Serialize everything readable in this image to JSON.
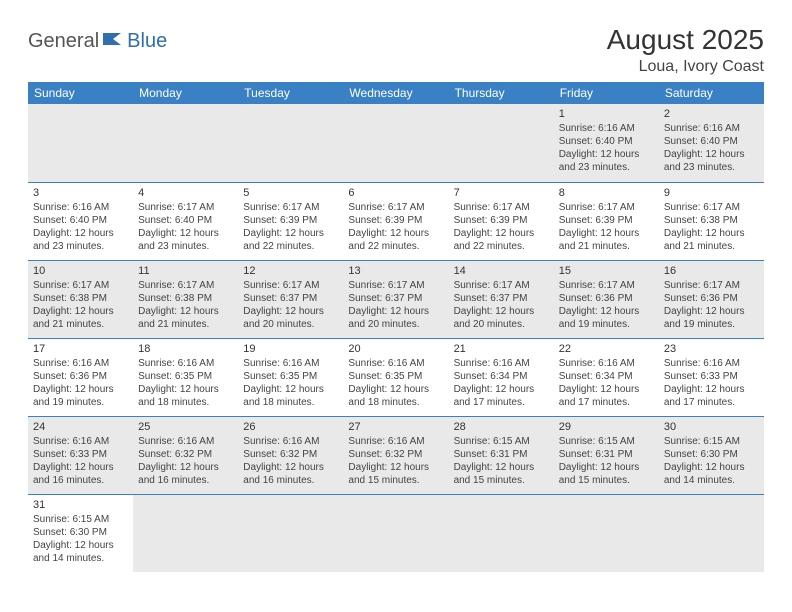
{
  "logo": {
    "part1": "General",
    "part2": "Blue"
  },
  "title": "August 2025",
  "subtitle": "Loua, Ivory Coast",
  "colors": {
    "header_bg": "#3a80c4",
    "header_text": "#ffffff",
    "row_alt_bg": "#e9e9e9",
    "row_bg": "#ffffff",
    "border": "#3a80c4",
    "logo_accent": "#2f6fad",
    "text": "#444444"
  },
  "weekdays": [
    "Sunday",
    "Monday",
    "Tuesday",
    "Wednesday",
    "Thursday",
    "Friday",
    "Saturday"
  ],
  "weeks": [
    [
      null,
      null,
      null,
      null,
      null,
      {
        "n": "1",
        "sr": "6:16 AM",
        "ss": "6:40 PM",
        "dl": "12 hours and 23 minutes."
      },
      {
        "n": "2",
        "sr": "6:16 AM",
        "ss": "6:40 PM",
        "dl": "12 hours and 23 minutes."
      }
    ],
    [
      {
        "n": "3",
        "sr": "6:16 AM",
        "ss": "6:40 PM",
        "dl": "12 hours and 23 minutes."
      },
      {
        "n": "4",
        "sr": "6:17 AM",
        "ss": "6:40 PM",
        "dl": "12 hours and 23 minutes."
      },
      {
        "n": "5",
        "sr": "6:17 AM",
        "ss": "6:39 PM",
        "dl": "12 hours and 22 minutes."
      },
      {
        "n": "6",
        "sr": "6:17 AM",
        "ss": "6:39 PM",
        "dl": "12 hours and 22 minutes."
      },
      {
        "n": "7",
        "sr": "6:17 AM",
        "ss": "6:39 PM",
        "dl": "12 hours and 22 minutes."
      },
      {
        "n": "8",
        "sr": "6:17 AM",
        "ss": "6:39 PM",
        "dl": "12 hours and 21 minutes."
      },
      {
        "n": "9",
        "sr": "6:17 AM",
        "ss": "6:38 PM",
        "dl": "12 hours and 21 minutes."
      }
    ],
    [
      {
        "n": "10",
        "sr": "6:17 AM",
        "ss": "6:38 PM",
        "dl": "12 hours and 21 minutes."
      },
      {
        "n": "11",
        "sr": "6:17 AM",
        "ss": "6:38 PM",
        "dl": "12 hours and 21 minutes."
      },
      {
        "n": "12",
        "sr": "6:17 AM",
        "ss": "6:37 PM",
        "dl": "12 hours and 20 minutes."
      },
      {
        "n": "13",
        "sr": "6:17 AM",
        "ss": "6:37 PM",
        "dl": "12 hours and 20 minutes."
      },
      {
        "n": "14",
        "sr": "6:17 AM",
        "ss": "6:37 PM",
        "dl": "12 hours and 20 minutes."
      },
      {
        "n": "15",
        "sr": "6:17 AM",
        "ss": "6:36 PM",
        "dl": "12 hours and 19 minutes."
      },
      {
        "n": "16",
        "sr": "6:17 AM",
        "ss": "6:36 PM",
        "dl": "12 hours and 19 minutes."
      }
    ],
    [
      {
        "n": "17",
        "sr": "6:16 AM",
        "ss": "6:36 PM",
        "dl": "12 hours and 19 minutes."
      },
      {
        "n": "18",
        "sr": "6:16 AM",
        "ss": "6:35 PM",
        "dl": "12 hours and 18 minutes."
      },
      {
        "n": "19",
        "sr": "6:16 AM",
        "ss": "6:35 PM",
        "dl": "12 hours and 18 minutes."
      },
      {
        "n": "20",
        "sr": "6:16 AM",
        "ss": "6:35 PM",
        "dl": "12 hours and 18 minutes."
      },
      {
        "n": "21",
        "sr": "6:16 AM",
        "ss": "6:34 PM",
        "dl": "12 hours and 17 minutes."
      },
      {
        "n": "22",
        "sr": "6:16 AM",
        "ss": "6:34 PM",
        "dl": "12 hours and 17 minutes."
      },
      {
        "n": "23",
        "sr": "6:16 AM",
        "ss": "6:33 PM",
        "dl": "12 hours and 17 minutes."
      }
    ],
    [
      {
        "n": "24",
        "sr": "6:16 AM",
        "ss": "6:33 PM",
        "dl": "12 hours and 16 minutes."
      },
      {
        "n": "25",
        "sr": "6:16 AM",
        "ss": "6:32 PM",
        "dl": "12 hours and 16 minutes."
      },
      {
        "n": "26",
        "sr": "6:16 AM",
        "ss": "6:32 PM",
        "dl": "12 hours and 16 minutes."
      },
      {
        "n": "27",
        "sr": "6:16 AM",
        "ss": "6:32 PM",
        "dl": "12 hours and 15 minutes."
      },
      {
        "n": "28",
        "sr": "6:15 AM",
        "ss": "6:31 PM",
        "dl": "12 hours and 15 minutes."
      },
      {
        "n": "29",
        "sr": "6:15 AM",
        "ss": "6:31 PM",
        "dl": "12 hours and 15 minutes."
      },
      {
        "n": "30",
        "sr": "6:15 AM",
        "ss": "6:30 PM",
        "dl": "12 hours and 14 minutes."
      }
    ],
    [
      {
        "n": "31",
        "sr": "6:15 AM",
        "ss": "6:30 PM",
        "dl": "12 hours and 14 minutes."
      },
      null,
      null,
      null,
      null,
      null,
      null
    ]
  ],
  "labels": {
    "sunrise": "Sunrise: ",
    "sunset": "Sunset: ",
    "daylight": "Daylight: "
  }
}
